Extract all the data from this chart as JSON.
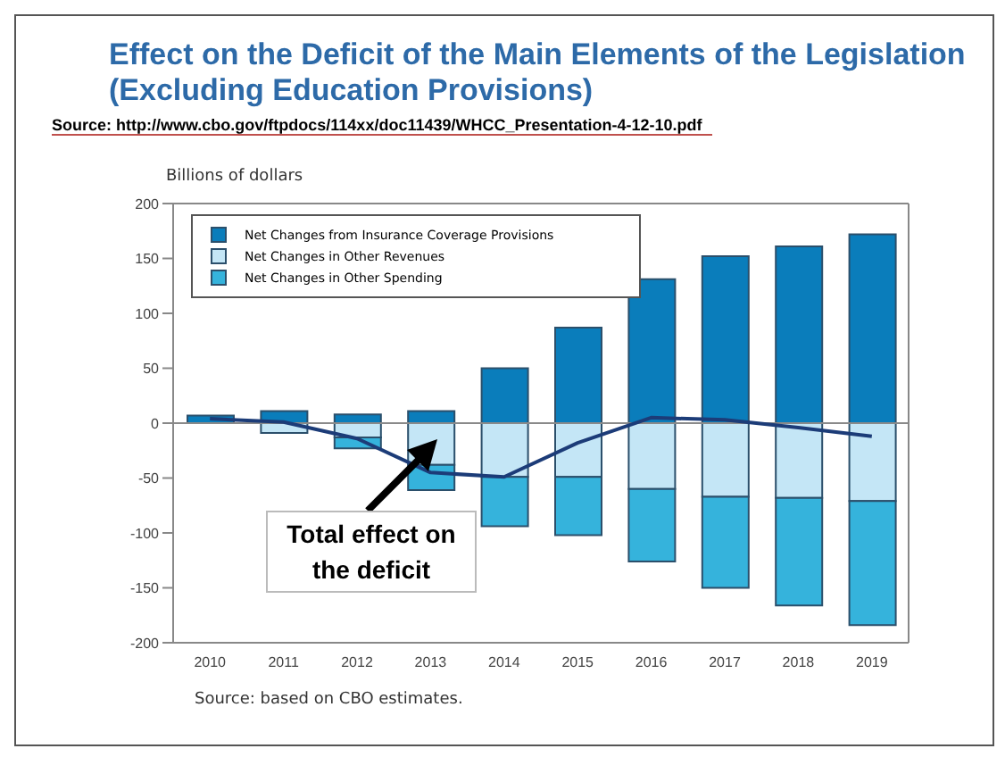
{
  "chart_data": {
    "type": "bar",
    "title": "Effect on the Deficit of the Main Elements of the Legislation (Excluding Education Provisions)",
    "ylabel": "Billions of dollars",
    "categories": [
      "2010",
      "2011",
      "2012",
      "2013",
      "2014",
      "2015",
      "2016",
      "2017",
      "2018",
      "2019"
    ],
    "stacked": true,
    "series": [
      {
        "name": "Net Changes from Insurance Coverage Provisions",
        "color": "#0a7dbb",
        "values": [
          7,
          11,
          8,
          11,
          50,
          87,
          131,
          152,
          161,
          172
        ]
      },
      {
        "name": "Net Changes in Other Revenues",
        "color": "#c4e6f6",
        "values": [
          null,
          -9,
          -13,
          -38,
          -49,
          -49,
          -60,
          -67,
          -68,
          -71
        ]
      },
      {
        "name": "Net Changes in Other Spending",
        "color": "#35b3dc",
        "values": [
          0,
          0,
          -10,
          -23,
          -45,
          -53,
          -66,
          -83,
          -98,
          -113
        ]
      },
      {
        "type": "line",
        "color": "#1c3c78",
        "values": [
          4,
          1,
          -14,
          -45,
          -49,
          -18,
          5,
          3,
          -4,
          -12
        ]
      }
    ],
    "ylim": [
      -200,
      200
    ],
    "yticks": [
      -200,
      -150,
      -100,
      -50,
      0,
      50,
      100,
      150,
      200
    ],
    "grid": false,
    "legend": "top left",
    "marker": "none",
    "ref_lines": [
      {
        "axis": "y",
        "value": 0,
        "color": "#8a8a8a"
      }
    ],
    "annotations": [
      "Source:  http://www.cbo.gov/ftpdocs/114xx/doc11439/WHCC_Presentation-4-12-10.pdf",
      "Total effect on the deficit",
      "Source: based on CBO estimates."
    ]
  }
}
